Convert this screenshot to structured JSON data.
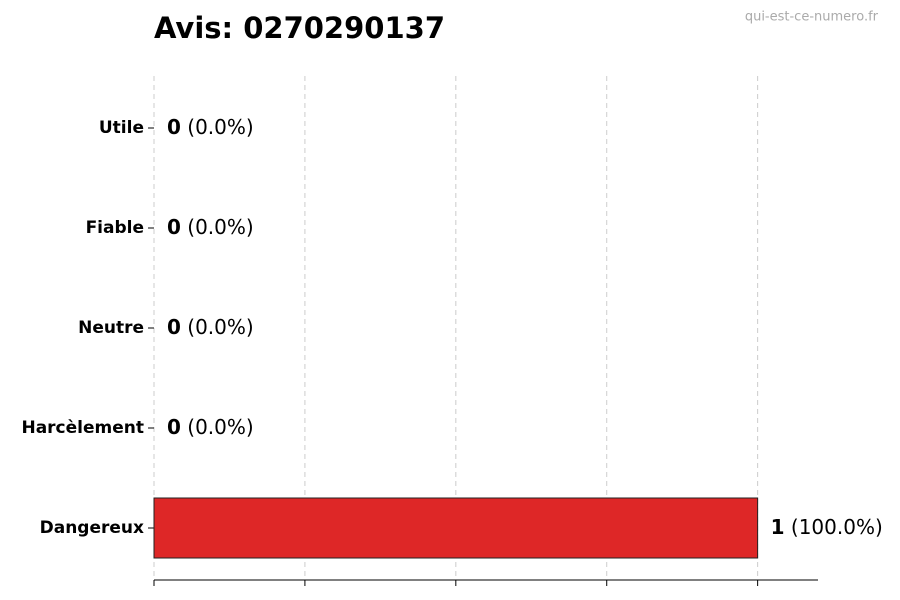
{
  "chart_data": {
    "type": "barh",
    "title": "Avis: 0270290137",
    "watermark": "qui-est-ce-numero.fr",
    "categories": [
      "Utile",
      "Fiable",
      "Neutre",
      "Harcèlement",
      "Dangereux"
    ],
    "values": [
      0,
      0,
      0,
      0,
      1
    ],
    "percent_labels": [
      "(0.0%)",
      "(0.0%)",
      "(0.0%)",
      "(0.0%)",
      "(100.0%)"
    ],
    "colors": [
      "#888888",
      "#888888",
      "#888888",
      "#888888",
      "#de2727"
    ],
    "xlim": [
      0,
      1.1
    ],
    "xticks": [
      0,
      0.25,
      0.5,
      0.75,
      1
    ],
    "grid": true
  }
}
